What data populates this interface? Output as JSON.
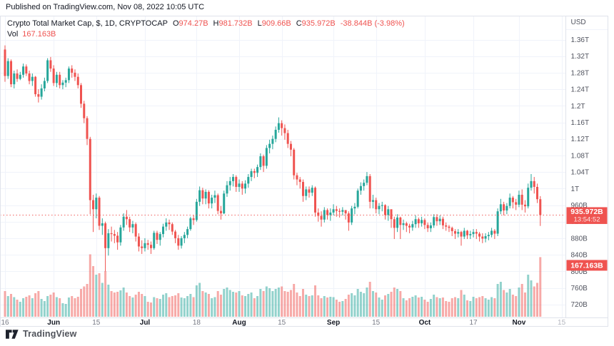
{
  "meta": {
    "published_note": "Published on TradingView.com, Nov 08, 2022 10:05 UTC",
    "brand": "TradingView"
  },
  "legend": {
    "title": "Crypto Total Market Cap, $, 1D, CRYPTOCAP",
    "items": [
      {
        "k": "O",
        "v": "974.27B"
      },
      {
        "k": "H",
        "v": "981.732B"
      },
      {
        "k": "L",
        "v": "909.66B"
      },
      {
        "k": "C",
        "v": "935.972B"
      }
    ],
    "change": "-38.844B (-3.98%)",
    "vol_label": "Vol",
    "vol_value": "167.163B"
  },
  "axis": {
    "currency": "USD",
    "price_ticks": [
      [
        1360,
        "1.36T"
      ],
      [
        1320,
        "1.32T"
      ],
      [
        1280,
        "1.28T"
      ],
      [
        1240,
        "1.24T"
      ],
      [
        1200,
        "1.2T"
      ],
      [
        1160,
        "1.16T"
      ],
      [
        1120,
        "1.12T"
      ],
      [
        1080,
        "1.08T"
      ],
      [
        1040,
        "1.04T"
      ],
      [
        1000,
        "1T"
      ],
      [
        960,
        "960B"
      ],
      [
        920,
        "920B"
      ],
      [
        880,
        "880B"
      ],
      [
        840,
        "840B"
      ],
      [
        800,
        "800B"
      ],
      [
        760,
        "760B"
      ],
      [
        720,
        "720B"
      ]
    ],
    "time_ticks": [
      [
        0,
        "16",
        0
      ],
      [
        16,
        "Jun",
        1
      ],
      [
        30,
        "15",
        0
      ],
      [
        46,
        "Jul",
        1
      ],
      [
        63,
        "18",
        0
      ],
      [
        77,
        "Aug",
        1
      ],
      [
        91,
        "15",
        0
      ],
      [
        108,
        "Sep",
        1
      ],
      [
        122,
        "15",
        0
      ],
      [
        138,
        "Oct",
        1
      ],
      [
        154,
        "17",
        0
      ],
      [
        169,
        "Nov",
        1
      ],
      [
        183,
        "15",
        2
      ]
    ],
    "price_label": {
      "value": "935.972B",
      "countdown": "13:54:52"
    },
    "volume_label": "167.163B"
  },
  "colors": {
    "up": "#26a69a",
    "down": "#ef5350",
    "volume_up": "rgba(38,166,154,0.5)",
    "volume_down": "rgba(239,83,80,0.5)",
    "grid": "#f0f3fa",
    "border": "#e0e3eb",
    "axis_text": "#50535e",
    "time_day_text": "#787b86",
    "time_month_text": "#131722",
    "future_text": "#b2b5be",
    "accent_red": "#ef5350",
    "text": "#131722",
    "label_text": "#ffffff"
  },
  "chart_data": {
    "type": "candlestick",
    "symbol": "CRYPTOCAP:TOTAL",
    "title": "Crypto Total Market Cap, $",
    "timeframe": "1D",
    "unit": "USD billions",
    "start_date": "2022-05-16",
    "end_date": "2022-11-08",
    "ylim": [
      680,
      1380
    ],
    "grid": true,
    "open_equals_previous_close": true,
    "first_open": 1336,
    "last_candle_ohlc": {
      "o": 974.27,
      "h": 981.732,
      "l": 909.66,
      "c": 935.972
    },
    "current_price": 935.972,
    "current_volume": 167.163,
    "hlc": [
      [
        1346,
        1258,
        1272
      ],
      [
        1315,
        1265,
        1308
      ],
      [
        1312,
        1245,
        1252
      ],
      [
        1285,
        1242,
        1278
      ],
      [
        1288,
        1258,
        1265
      ],
      [
        1282,
        1262,
        1275
      ],
      [
        1302,
        1268,
        1295
      ],
      [
        1300,
        1272,
        1278
      ],
      [
        1285,
        1252,
        1260
      ],
      [
        1278,
        1248,
        1270
      ],
      [
        1272,
        1222,
        1228
      ],
      [
        1240,
        1208,
        1222
      ],
      [
        1252,
        1215,
        1242
      ],
      [
        1268,
        1235,
        1260
      ],
      [
        1315,
        1255,
        1310
      ],
      [
        1318,
        1282,
        1290
      ],
      [
        1298,
        1248,
        1255
      ],
      [
        1282,
        1245,
        1275
      ],
      [
        1282,
        1242,
        1250
      ],
      [
        1262,
        1240,
        1256
      ],
      [
        1268,
        1245,
        1262
      ],
      [
        1295,
        1255,
        1290
      ],
      [
        1298,
        1268,
        1280
      ],
      [
        1288,
        1260,
        1270
      ],
      [
        1278,
        1242,
        1250
      ],
      [
        1255,
        1195,
        1205
      ],
      [
        1212,
        1158,
        1170
      ],
      [
        1175,
        1105,
        1120
      ],
      [
        1125,
        938,
        972
      ],
      [
        985,
        895,
        950
      ],
      [
        988,
        928,
        978
      ],
      [
        982,
        900,
        910
      ],
      [
        928,
        888,
        916
      ],
      [
        920,
        800,
        856
      ],
      [
        902,
        838,
        892
      ],
      [
        908,
        872,
        890
      ],
      [
        900,
        868,
        886
      ],
      [
        895,
        852,
        870
      ],
      [
        912,
        862,
        906
      ],
      [
        940,
        898,
        932
      ],
      [
        948,
        912,
        926
      ],
      [
        932,
        895,
        906
      ],
      [
        922,
        892,
        914
      ],
      [
        918,
        872,
        884
      ],
      [
        892,
        848,
        860
      ],
      [
        875,
        842,
        856
      ],
      [
        880,
        848,
        868
      ],
      [
        876,
        852,
        864
      ],
      [
        872,
        842,
        856
      ],
      [
        898,
        852,
        893
      ],
      [
        898,
        866,
        876
      ],
      [
        895,
        862,
        890
      ],
      [
        915,
        882,
        908
      ],
      [
        928,
        898,
        918
      ],
      [
        925,
        900,
        914
      ],
      [
        918,
        888,
        896
      ],
      [
        900,
        868,
        880
      ],
      [
        888,
        852,
        862
      ],
      [
        885,
        855,
        880
      ],
      [
        895,
        868,
        888
      ],
      [
        908,
        880,
        902
      ],
      [
        932,
        898,
        928
      ],
      [
        935,
        912,
        924
      ],
      [
        975,
        920,
        968
      ],
      [
        1005,
        958,
        996
      ],
      [
        1002,
        962,
        976
      ],
      [
        998,
        962,
        992
      ],
      [
        996,
        952,
        964
      ],
      [
        985,
        952,
        978
      ],
      [
        995,
        965,
        984
      ],
      [
        988,
        938,
        946
      ],
      [
        958,
        925,
        940
      ],
      [
        995,
        938,
        988
      ],
      [
        1018,
        980,
        1008
      ],
      [
        1028,
        995,
        1018
      ],
      [
        1035,
        1005,
        1028
      ],
      [
        1032,
        992,
        1004
      ],
      [
        1022,
        992,
        1012
      ],
      [
        1018,
        985,
        1000
      ],
      [
        1020,
        988,
        1012
      ],
      [
        1035,
        1002,
        1028
      ],
      [
        1048,
        1018,
        1042
      ],
      [
        1048,
        1025,
        1038
      ],
      [
        1058,
        1028,
        1052
      ],
      [
        1085,
        1045,
        1078
      ],
      [
        1082,
        1040,
        1055
      ],
      [
        1105,
        1048,
        1098
      ],
      [
        1118,
        1085,
        1108
      ],
      [
        1128,
        1095,
        1120
      ],
      [
        1150,
        1112,
        1142
      ],
      [
        1172,
        1135,
        1158
      ],
      [
        1165,
        1128,
        1146
      ],
      [
        1155,
        1118,
        1134
      ],
      [
        1142,
        1098,
        1108
      ],
      [
        1115,
        1078,
        1094
      ],
      [
        1098,
        1022,
        1032
      ],
      [
        1038,
        1008,
        1022
      ],
      [
        1028,
        1000,
        1016
      ],
      [
        1022,
        968,
        982
      ],
      [
        1005,
        972,
        998
      ],
      [
        1005,
        978,
        990
      ],
      [
        1008,
        982,
        1002
      ],
      [
        1005,
        932,
        942
      ],
      [
        952,
        920,
        934
      ],
      [
        945,
        908,
        925
      ],
      [
        955,
        918,
        948
      ],
      [
        952,
        925,
        936
      ],
      [
        952,
        922,
        942
      ],
      [
        962,
        935,
        950
      ],
      [
        958,
        932,
        946
      ],
      [
        952,
        930,
        944
      ],
      [
        955,
        935,
        948
      ],
      [
        948,
        925,
        940
      ],
      [
        945,
        898,
        918
      ],
      [
        958,
        912,
        952
      ],
      [
        965,
        938,
        956
      ],
      [
        1000,
        952,
        995
      ],
      [
        1015,
        985,
        1006
      ],
      [
        1022,
        995,
        1014
      ],
      [
        1040,
        1008,
        1030
      ],
      [
        1035,
        952,
        968
      ],
      [
        985,
        952,
        972
      ],
      [
        978,
        940,
        950
      ],
      [
        965,
        938,
        958
      ],
      [
        968,
        945,
        960
      ],
      [
        962,
        925,
        936
      ],
      [
        958,
        922,
        950
      ],
      [
        945,
        905,
        926
      ],
      [
        932,
        878,
        905
      ],
      [
        938,
        895,
        930
      ],
      [
        932,
        878,
        912
      ],
      [
        925,
        900,
        916
      ],
      [
        920,
        895,
        910
      ],
      [
        915,
        892,
        906
      ],
      [
        922,
        898,
        914
      ],
      [
        935,
        905,
        926
      ],
      [
        930,
        905,
        916
      ],
      [
        932,
        908,
        924
      ],
      [
        928,
        902,
        912
      ],
      [
        918,
        895,
        904
      ],
      [
        918,
        895,
        911
      ],
      [
        938,
        905,
        931
      ],
      [
        938,
        910,
        921
      ],
      [
        935,
        912,
        927
      ],
      [
        932,
        902,
        911
      ],
      [
        918,
        898,
        908
      ],
      [
        912,
        895,
        905
      ],
      [
        908,
        885,
        897
      ],
      [
        902,
        878,
        891
      ],
      [
        902,
        882,
        895
      ],
      [
        898,
        862,
        884
      ],
      [
        905,
        878,
        898
      ],
      [
        900,
        878,
        887
      ],
      [
        898,
        878,
        890
      ],
      [
        902,
        882,
        895
      ],
      [
        902,
        878,
        891
      ],
      [
        895,
        872,
        884
      ],
      [
        892,
        868,
        879
      ],
      [
        892,
        870,
        885
      ],
      [
        895,
        875,
        888
      ],
      [
        905,
        882,
        898
      ],
      [
        902,
        878,
        891
      ],
      [
        952,
        885,
        945
      ],
      [
        975,
        938,
        962
      ],
      [
        968,
        935,
        947
      ],
      [
        965,
        938,
        958
      ],
      [
        988,
        952,
        978
      ],
      [
        982,
        952,
        967
      ],
      [
        975,
        948,
        961
      ],
      [
        995,
        955,
        985
      ],
      [
        998,
        948,
        961
      ],
      [
        972,
        942,
        957
      ],
      [
        1012,
        952,
        1002
      ],
      [
        1035,
        995,
        1018
      ],
      [
        1028,
        988,
        1004
      ],
      [
        1012,
        965,
        974.27
      ],
      [
        981.732,
        909.66,
        935.972
      ]
    ],
    "volumes": [
      72,
      58,
      64,
      55,
      48,
      42,
      52,
      56,
      60,
      52,
      66,
      72,
      50,
      44,
      58,
      62,
      68,
      55,
      52,
      38,
      36,
      54,
      58,
      52,
      56,
      78,
      85,
      92,
      175,
      142,
      118,
      122,
      95,
      128,
      90,
      72,
      68,
      70,
      74,
      82,
      68,
      58,
      54,
      62,
      70,
      64,
      58,
      42,
      40,
      55,
      52,
      50,
      62,
      66,
      55,
      58,
      60,
      66,
      54,
      52,
      58,
      64,
      55,
      88,
      95,
      72,
      68,
      64,
      52,
      55,
      72,
      62,
      78,
      82,
      75,
      70,
      68,
      72,
      60,
      58,
      64,
      68,
      52,
      58,
      78,
      72,
      85,
      80,
      72,
      78,
      82,
      85,
      72,
      70,
      75,
      92,
      68,
      58,
      78,
      62,
      58,
      60,
      88,
      60,
      52,
      58,
      54,
      56,
      55,
      48,
      42,
      44,
      50,
      62,
      66,
      60,
      78,
      70,
      66,
      82,
      98,
      72,
      68,
      54,
      48,
      60,
      64,
      70,
      82,
      78,
      72,
      52,
      46,
      52,
      56,
      60,
      54,
      56,
      48,
      42,
      50,
      62,
      55,
      52,
      54,
      44,
      42,
      52,
      55,
      52,
      75,
      62,
      46,
      44,
      56,
      52,
      55,
      58,
      52,
      48,
      55,
      52,
      92,
      98,
      75,
      68,
      78,
      62,
      58,
      82,
      92,
      68,
      118,
      102,
      85,
      95,
      167.163
    ]
  }
}
